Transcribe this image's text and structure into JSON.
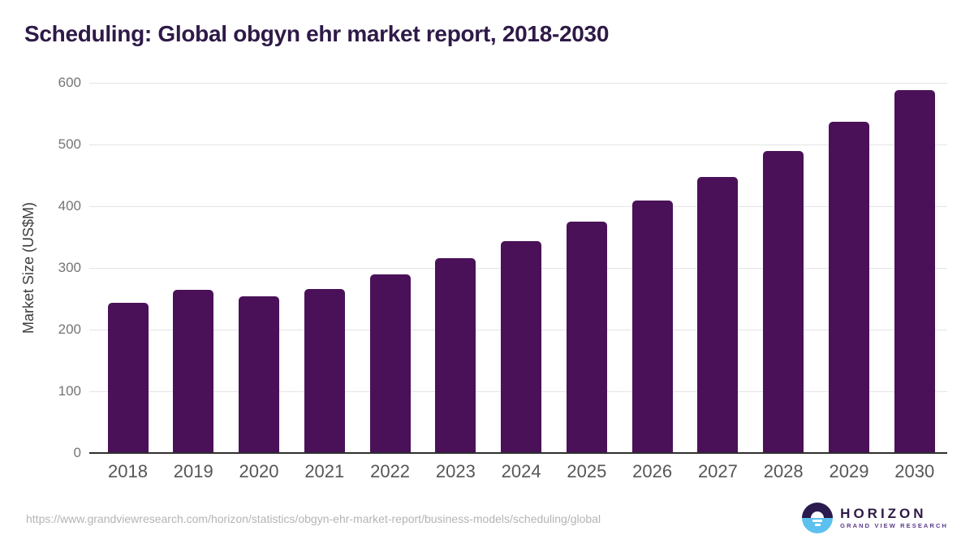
{
  "title": "Scheduling: Global obgyn ehr market report, 2018-2030",
  "chart_data": {
    "type": "bar",
    "title": "Scheduling: Global obgyn ehr market report, 2018-2030",
    "categories": [
      "2018",
      "2019",
      "2020",
      "2021",
      "2022",
      "2023",
      "2024",
      "2025",
      "2026",
      "2027",
      "2028",
      "2029",
      "2030"
    ],
    "values": [
      244,
      264,
      254,
      266,
      289,
      316,
      343,
      375,
      409,
      447,
      489,
      537,
      588
    ],
    "xlabel": "",
    "ylabel": "Market Size (US$M)",
    "ylim": [
      0,
      600
    ],
    "yticks": [
      0,
      100,
      200,
      300,
      400,
      500,
      600
    ],
    "grid": true,
    "legend": "none",
    "bar_color": "#4a1158"
  },
  "colors": {
    "title_text": "#2e1a47",
    "bar": "#4a1158",
    "gridline": "#e4e4e4",
    "axis_line": "#2f2f2f",
    "tick_text": "#757575",
    "x_label_text": "#565656",
    "url_text": "#b4b4b4",
    "logo_top": "#2b1a4e",
    "logo_bottom": "#5cc1ef",
    "logo_tagline": "#5c3c8a"
  },
  "footer": {
    "source_url": "https://www.grandviewresearch.com/horizon/statistics/obgyn-ehr-market-report/business-models/scheduling/global",
    "logo": {
      "brand": "HORIZON",
      "tagline": "GRAND VIEW RESEARCH"
    }
  }
}
